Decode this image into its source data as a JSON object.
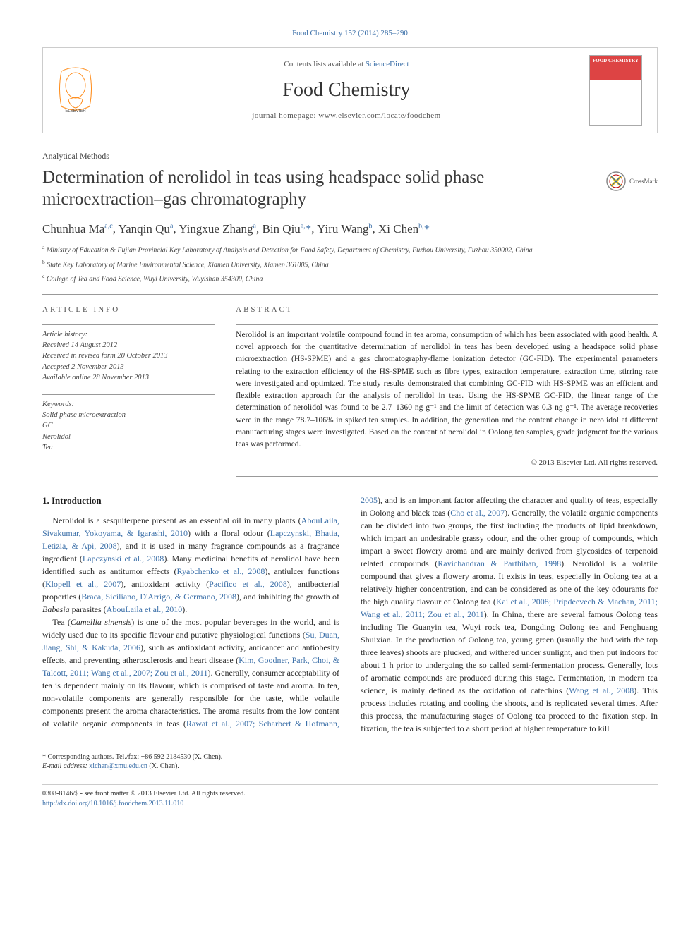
{
  "header": {
    "citation": "Food Chemistry 152 (2014) 285–290",
    "contents_prefix": "Contents lists available at ",
    "contents_link": "ScienceDirect",
    "journal": "Food Chemistry",
    "homepage_label": "journal homepage: ",
    "homepage_url": "www.elsevier.com/locate/foodchem",
    "cover_title": "FOOD CHEMISTRY"
  },
  "colors": {
    "link": "#3b6fa8",
    "text": "#1a1a1a",
    "muted": "#555555",
    "rule": "#999999",
    "elsevier_orange": "#ff6b00",
    "cover_red": "#d44444"
  },
  "article": {
    "section": "Analytical Methods",
    "title": "Determination of nerolidol in teas using headspace solid phase microextraction–gas chromatography",
    "crossmark": "CrossMark"
  },
  "authors": {
    "list_html": "Chunhua Ma<sup>a,c</sup>, Yanqin Qu<sup>a</sup>, Yingxue Zhang<sup>a</sup>, Bin Qiu<sup>a,</sup><span class='star'>*</span>, Yiru Wang<sup>b</sup>, Xi Chen<sup>b,</sup><span class='star'>*</span>"
  },
  "affiliations": {
    "a": "Ministry of Education & Fujian Provincial Key Laboratory of Analysis and Detection for Food Safety, Department of Chemistry, Fuzhou University, Fuzhou 350002, China",
    "b": "State Key Laboratory of Marine Environmental Science, Xiamen University, Xiamen 361005, China",
    "c": "College of Tea and Food Science, Wuyi University, Wuyishan 354300, China"
  },
  "info": {
    "heading": "article info",
    "history_title": "Article history:",
    "history": [
      "Received 14 August 2012",
      "Received in revised form 20 October 2013",
      "Accepted 2 November 2013",
      "Available online 28 November 2013"
    ],
    "keywords_title": "Keywords:",
    "keywords": [
      "Solid phase microextraction",
      "GC",
      "Nerolidol",
      "Tea"
    ]
  },
  "abstract": {
    "heading": "abstract",
    "body": "Nerolidol is an important volatile compound found in tea aroma, consumption of which has been associated with good health. A novel approach for the quantitative determination of nerolidol in teas has been developed using a headspace solid phase microextraction (HS-SPME) and a gas chromatography-flame ionization detector (GC-FID). The experimental parameters relating to the extraction efficiency of the HS-SPME such as fibre types, extraction temperature, extraction time, stirring rate were investigated and optimized. The study results demonstrated that combining GC-FID with HS-SPME was an efficient and flexible extraction approach for the analysis of nerolidol in teas. Using the HS-SPME–GC-FID, the linear range of the determination of nerolidol was found to be 2.7–1360 ng g⁻¹ and the limit of detection was 0.3 ng g⁻¹. The average recoveries were in the range 78.7–106% in spiked tea samples. In addition, the generation and the content change in nerolidol at different manufacturing stages were investigated. Based on the content of nerolidol in Oolong tea samples, grade judgment for the various teas was performed.",
    "copyright": "© 2013 Elsevier Ltd. All rights reserved."
  },
  "body": {
    "section_number": "1.",
    "section_title": "Introduction",
    "p1_pre": "Nerolidol is a sesquiterpene present as an essential oil in many plants (",
    "p1_ref1": "AbouLaila, Sivakumar, Yokoyama, & Igarashi, 2010",
    "p1_mid1": ") with a floral odour (",
    "p1_ref2": "Lapczynski, Bhatia, Letizia, & Api, 2008",
    "p1_mid2": "), and it is used in many fragrance compounds as a fragrance ingredient (",
    "p1_ref3": "Lapczynski et al., 2008",
    "p1_mid3": "). Many medicinal benefits of nerolidol have been identified such as antitumor effects (",
    "p1_ref4": "Ryabchenko et al., 2008",
    "p1_mid4": "), antiulcer functions (",
    "p1_ref5": "Klopell et al., 2007",
    "p1_mid5": "), antioxidant activity (",
    "p1_ref6": "Pacifico et al., 2008",
    "p1_mid6": "), antibacterial properties (",
    "p1_ref7": "Braca, Siciliano, D'Arrigo, & Germano, 2008",
    "p1_mid7": "), and inhibiting the growth of ",
    "p1_em": "Babesia",
    "p1_mid8": " parasites (",
    "p1_ref8": "AbouLaila et al., 2010",
    "p1_end": ").",
    "p2_pre": "Tea (",
    "p2_em1": "Camellia sinensis",
    "p2_mid1": ") is one of the most popular beverages in the world, and is widely used due to its specific flavour and putative physiological functions (",
    "p2_ref1": "Su, Duan, Jiang, Shi, & Kakuda, 2006",
    "p2_mid2": "), such as antioxidant activity, anticancer and antiobesity effects, and preventing atherosclerosis and heart disease (",
    "p2_ref2": "Kim, Goodner, Park, Choi, & Talcott, 2011; Wang et al., 2007; Zou et al., 2011",
    "p2_mid3": "). Generally, consumer acceptability of tea is dependent mainly on its flavour, which is comprised of taste and aroma. In tea, non-volatile components are generally responsible for the taste, while volatile components present the aroma characteristics. The aroma results from the low content of volatile organic components in teas (",
    "p2_ref3": "Rawat et al., 2007; Scharbert & Hofmann, 2005",
    "p2_mid4": "), and is an important factor affecting the character and quality of teas, especially in Oolong and black teas (",
    "p2_ref4": "Cho et al., 2007",
    "p2_mid5": "). Generally, the volatile organic components can be divided into two groups, the first including the products of lipid breakdown, which impart an undesirable grassy odour, and the other group of compounds, which impart a sweet flowery aroma and are mainly derived from glycosides of terpenoid related compounds (",
    "p2_ref5": "Ravichandran & Parthiban, 1998",
    "p2_mid6": "). Nerolidol is a volatile compound that gives a flowery aroma. It exists in teas, especially in Oolong tea at a relatively higher concentration, and can be considered as one of the key odourants for the high quality flavour of Oolong tea (",
    "p2_ref6": "Kai et al., 2008; Pripdeevech & Machan, 2011; Wang et al., 2011; Zou et al., 2011",
    "p2_mid7": "). In China, there are several famous Oolong teas including Tie Guanyin tea, Wuyi rock tea, Dongding Oolong tea and Fenghuang Shuixian. In the production of Oolong tea, young green (usually the bud with the top three leaves) shoots are plucked, and withered under sunlight, and then put indoors for about 1 h prior to undergoing the so called semi-fermentation process. Generally, lots of aromatic compounds are produced during this stage. Fermentation, in modern tea science, is mainly defined as the oxidation of catechins (",
    "p2_ref7": "Wang et al., 2008",
    "p2_end": "). This process includes rotating and cooling the shoots, and is replicated several times. After this process, the manufacturing stages of Oolong tea proceed to the fixation step. In fixation, the tea is subjected to a short period at higher temperature to kill"
  },
  "footnotes": {
    "corr": "* Corresponding authors. Tel./fax: +86 592 2184530 (X. Chen).",
    "email_label": "E-mail address: ",
    "email": "xichen@xmu.edu.cn",
    "email_suffix": " (X. Chen)."
  },
  "bottom": {
    "line1": "0308-8146/$ - see front matter © 2013 Elsevier Ltd. All rights reserved.",
    "doi": "http://dx.doi.org/10.1016/j.foodchem.2013.11.010"
  }
}
